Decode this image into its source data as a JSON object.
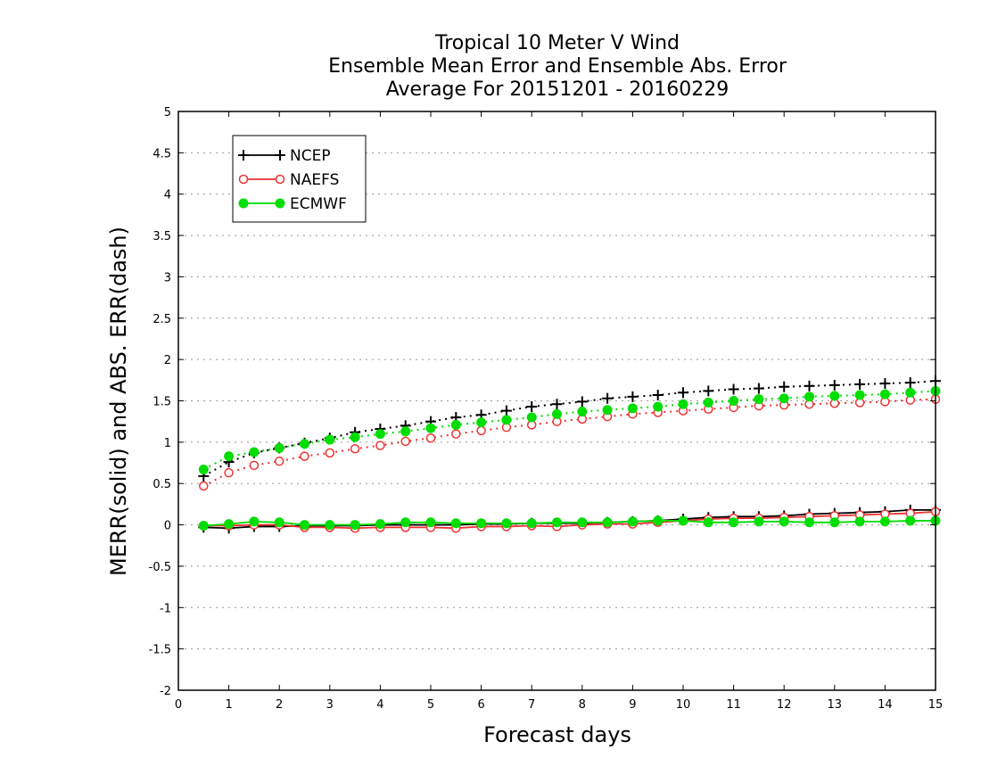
{
  "chart_data": {
    "type": "line",
    "title": [
      "Tropical 10 Meter V Wind",
      "Ensemble Mean Error and Ensemble Abs. Error",
      "Average For 20151201 - 20160229"
    ],
    "xlabel": "Forecast days",
    "ylabel": "MERR(solid) and ABS. ERR(dash)",
    "xlim": [
      0,
      15
    ],
    "ylim": [
      -2,
      5
    ],
    "xticks": [
      "0",
      "1",
      "2",
      "3",
      "4",
      "5",
      "6",
      "7",
      "8",
      "9",
      "10",
      "11",
      "12",
      "13",
      "14",
      "15"
    ],
    "yticks": [
      "-2",
      "-1.5",
      "-1",
      "-0.5",
      "0",
      "0.5",
      "1",
      "1.5",
      "2",
      "2.5",
      "3",
      "3.5",
      "4",
      "4.5",
      "5"
    ],
    "grid": "horizontal dotted",
    "legend_position": "top-left",
    "x": [
      0.5,
      1,
      1.5,
      2,
      2.5,
      3,
      3.5,
      4,
      4.5,
      5,
      5.5,
      6,
      6.5,
      7,
      7.5,
      8,
      8.5,
      9,
      9.5,
      10,
      10.5,
      11,
      11.5,
      12,
      12.5,
      13,
      13.5,
      14,
      14.5,
      15
    ],
    "series": [
      {
        "name": "NCEP",
        "color": "#000000",
        "marker": "plus",
        "abs_error": [
          0.59,
          0.76,
          0.87,
          0.93,
          0.99,
          1.05,
          1.12,
          1.16,
          1.2,
          1.25,
          1.3,
          1.33,
          1.38,
          1.43,
          1.46,
          1.49,
          1.53,
          1.55,
          1.57,
          1.6,
          1.62,
          1.64,
          1.65,
          1.67,
          1.68,
          1.69,
          1.7,
          1.71,
          1.72,
          1.74
        ],
        "mean_error": [
          -0.03,
          -0.04,
          -0.02,
          -0.02,
          -0.01,
          -0.01,
          -0.01,
          0.0,
          0.0,
          0.0,
          0.0,
          0.01,
          0.01,
          0.02,
          0.02,
          0.02,
          0.03,
          0.04,
          0.05,
          0.07,
          0.09,
          0.1,
          0.1,
          0.11,
          0.13,
          0.14,
          0.15,
          0.16,
          0.18,
          0.18
        ]
      },
      {
        "name": "NAEFS",
        "color": "#ee3333",
        "marker": "open-circle",
        "abs_error": [
          0.47,
          0.63,
          0.72,
          0.77,
          0.83,
          0.87,
          0.92,
          0.96,
          1.01,
          1.05,
          1.1,
          1.14,
          1.18,
          1.21,
          1.25,
          1.28,
          1.31,
          1.34,
          1.36,
          1.38,
          1.4,
          1.42,
          1.44,
          1.45,
          1.46,
          1.47,
          1.48,
          1.49,
          1.51,
          1.52
        ],
        "mean_error": [
          -0.01,
          -0.01,
          0.0,
          0.0,
          -0.03,
          -0.03,
          -0.04,
          -0.03,
          -0.03,
          -0.03,
          -0.04,
          -0.02,
          -0.02,
          -0.01,
          -0.02,
          0.0,
          0.01,
          0.01,
          0.03,
          0.05,
          0.07,
          0.08,
          0.08,
          0.09,
          0.1,
          0.11,
          0.12,
          0.13,
          0.14,
          0.16
        ]
      },
      {
        "name": "ECMWF",
        "color": "#00dd00",
        "marker": "filled-circle",
        "abs_error": [
          0.67,
          0.83,
          0.88,
          0.93,
          0.98,
          1.03,
          1.06,
          1.1,
          1.13,
          1.17,
          1.21,
          1.24,
          1.27,
          1.3,
          1.34,
          1.37,
          1.39,
          1.41,
          1.43,
          1.46,
          1.48,
          1.5,
          1.52,
          1.53,
          1.55,
          1.56,
          1.57,
          1.58,
          1.6,
          1.62
        ],
        "mean_error": [
          -0.01,
          0.01,
          0.04,
          0.03,
          0.0,
          0.0,
          0.0,
          0.01,
          0.03,
          0.03,
          0.02,
          0.02,
          0.02,
          0.02,
          0.03,
          0.03,
          0.03,
          0.04,
          0.05,
          0.05,
          0.03,
          0.03,
          0.04,
          0.04,
          0.03,
          0.03,
          0.04,
          0.04,
          0.05,
          0.05
        ]
      }
    ]
  }
}
